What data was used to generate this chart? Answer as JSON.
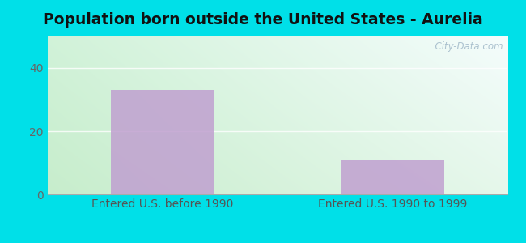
{
  "title": "Population born outside the United States - Aurelia",
  "categories": [
    "Entered U.S. before 1990",
    "Entered U.S. 1990 to 1999"
  ],
  "values": [
    33,
    11
  ],
  "bar_color": "#c0a0d0",
  "bar_width": 0.45,
  "ylim": [
    0,
    50
  ],
  "yticks": [
    0,
    20,
    40
  ],
  "background_outer": "#00e0e8",
  "title_fontsize": 13.5,
  "tick_fontsize": 10,
  "xlabel_fontsize": 10,
  "watermark": "  City-Data.com",
  "watermark_color": "#a0b8c8",
  "grid_color": "#d0e8d0",
  "bg_top": "#e8f8f0",
  "bg_bottom": "#c8e8c8"
}
